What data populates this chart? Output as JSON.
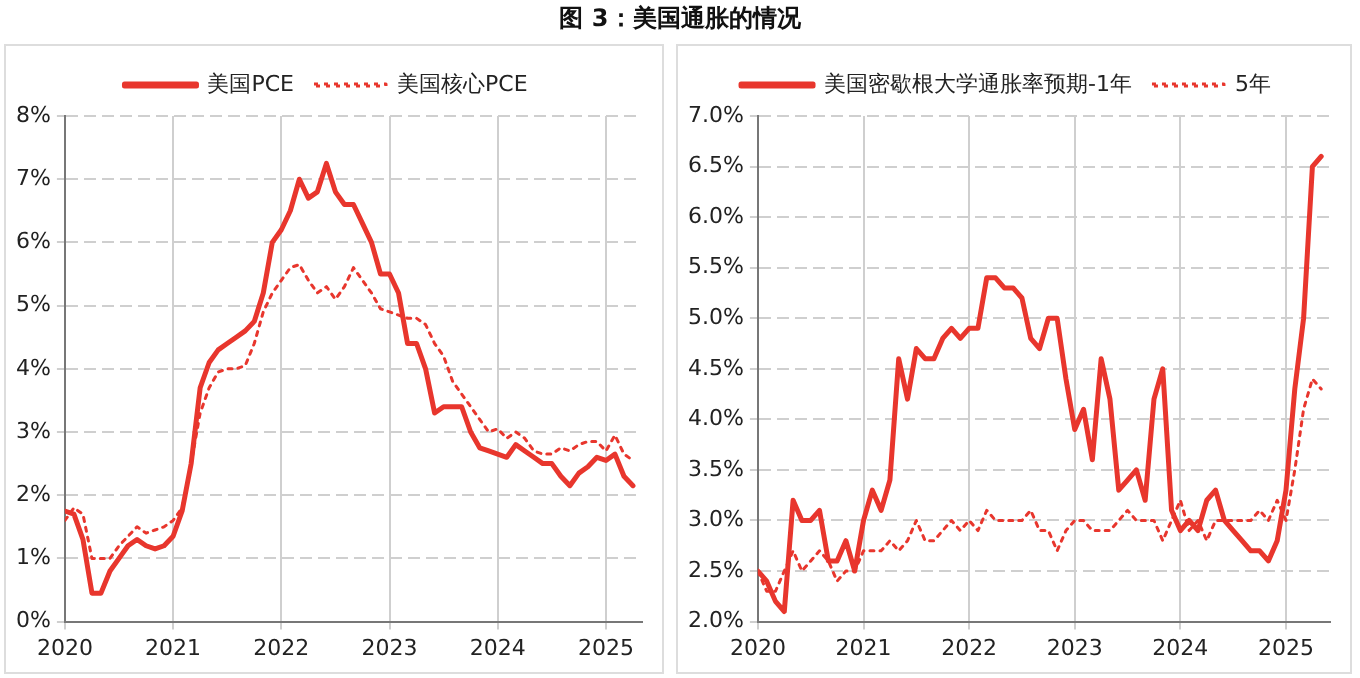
{
  "chart_data": [
    {
      "type": "line",
      "title": "图 3：美国通胀的情况",
      "x": [
        "2020-01",
        "2020-02",
        "2020-03",
        "2020-04",
        "2020-05",
        "2020-06",
        "2020-07",
        "2020-08",
        "2020-09",
        "2020-10",
        "2020-11",
        "2020-12",
        "2021-01",
        "2021-02",
        "2021-03",
        "2021-04",
        "2021-05",
        "2021-06",
        "2021-07",
        "2021-08",
        "2021-09",
        "2021-10",
        "2021-11",
        "2021-12",
        "2022-01",
        "2022-02",
        "2022-03",
        "2022-04",
        "2022-05",
        "2022-06",
        "2022-07",
        "2022-08",
        "2022-09",
        "2022-10",
        "2022-11",
        "2022-12",
        "2023-01",
        "2023-02",
        "2023-03",
        "2023-04",
        "2023-05",
        "2023-06",
        "2023-07",
        "2023-08",
        "2023-09",
        "2023-10",
        "2023-11",
        "2023-12",
        "2024-01",
        "2024-02",
        "2024-03",
        "2024-04",
        "2024-05",
        "2024-06",
        "2024-07",
        "2024-08",
        "2024-09",
        "2024-10",
        "2024-11",
        "2024-12",
        "2025-01",
        "2025-02",
        "2025-03",
        "2025-04"
      ],
      "series": [
        {
          "name": "美国PCE",
          "color": "#e8362d",
          "line_style": "solid",
          "values": [
            1.75,
            1.7,
            1.3,
            0.45,
            0.45,
            0.8,
            1.0,
            1.2,
            1.3,
            1.2,
            1.15,
            1.2,
            1.35,
            1.75,
            2.5,
            3.7,
            4.1,
            4.3,
            4.4,
            4.5,
            4.6,
            4.75,
            5.2,
            6.0,
            6.2,
            6.5,
            7.0,
            6.7,
            6.8,
            7.25,
            6.8,
            6.6,
            6.6,
            6.3,
            6.0,
            5.5,
            5.5,
            5.2,
            4.4,
            4.4,
            4.0,
            3.3,
            3.4,
            3.4,
            3.4,
            3.0,
            2.75,
            2.7,
            2.65,
            2.6,
            2.8,
            2.7,
            2.6,
            2.5,
            2.5,
            2.3,
            2.15,
            2.35,
            2.45,
            2.6,
            2.55,
            2.65,
            2.3,
            2.15
          ]
        },
        {
          "name": "美国核心PCE",
          "color": "#e8362d",
          "line_style": "dotted",
          "values": [
            1.6,
            1.8,
            1.7,
            1.0,
            1.0,
            1.0,
            1.2,
            1.35,
            1.5,
            1.4,
            1.45,
            1.5,
            1.6,
            1.8,
            2.5,
            3.3,
            3.7,
            3.95,
            4.0,
            4.0,
            4.05,
            4.4,
            4.9,
            5.2,
            5.4,
            5.6,
            5.65,
            5.4,
            5.2,
            5.3,
            5.1,
            5.3,
            5.6,
            5.4,
            5.2,
            4.95,
            4.9,
            4.85,
            4.8,
            4.8,
            4.7,
            4.4,
            4.2,
            3.8,
            3.6,
            3.4,
            3.2,
            3.0,
            3.05,
            2.9,
            3.0,
            2.9,
            2.7,
            2.65,
            2.65,
            2.75,
            2.7,
            2.8,
            2.85,
            2.85,
            2.7,
            2.95,
            2.65,
            2.55
          ]
        }
      ],
      "xlim": [
        "2020-01",
        "2025-05"
      ],
      "xticks": [
        "2020",
        "2021",
        "2022",
        "2023",
        "2024",
        "2025"
      ],
      "ylim": [
        0,
        8
      ],
      "yticks": [
        {
          "value": 0,
          "label": "0%"
        },
        {
          "value": 1,
          "label": "1%"
        },
        {
          "value": 2,
          "label": "2%"
        },
        {
          "value": 3,
          "label": "3%"
        },
        {
          "value": 4,
          "label": "4%"
        },
        {
          "value": 5,
          "label": "5%"
        },
        {
          "value": 6,
          "label": "6%"
        },
        {
          "value": 7,
          "label": "7%"
        },
        {
          "value": 8,
          "label": "8%"
        }
      ],
      "grid": true,
      "legend": "top",
      "marker": "none"
    },
    {
      "type": "line",
      "x": [
        "2020-01",
        "2020-02",
        "2020-03",
        "2020-04",
        "2020-05",
        "2020-06",
        "2020-07",
        "2020-08",
        "2020-09",
        "2020-10",
        "2020-11",
        "2020-12",
        "2021-01",
        "2021-02",
        "2021-03",
        "2021-04",
        "2021-05",
        "2021-06",
        "2021-07",
        "2021-08",
        "2021-09",
        "2021-10",
        "2021-11",
        "2021-12",
        "2022-01",
        "2022-02",
        "2022-03",
        "2022-04",
        "2022-05",
        "2022-06",
        "2022-07",
        "2022-08",
        "2022-09",
        "2022-10",
        "2022-11",
        "2022-12",
        "2023-01",
        "2023-02",
        "2023-03",
        "2023-04",
        "2023-05",
        "2023-06",
        "2023-07",
        "2023-08",
        "2023-09",
        "2023-10",
        "2023-11",
        "2023-12",
        "2024-01",
        "2024-02",
        "2024-03",
        "2024-04",
        "2024-05",
        "2024-06",
        "2024-07",
        "2024-08",
        "2024-09",
        "2024-10",
        "2024-11",
        "2024-12",
        "2025-01",
        "2025-02",
        "2025-03",
        "2025-04",
        "2025-05"
      ],
      "series": [
        {
          "name": "美国密歇根大学通胀率预期-1年",
          "color": "#e8362d",
          "line_style": "solid",
          "values": [
            2.5,
            2.4,
            2.2,
            2.1,
            3.2,
            3.0,
            3.0,
            3.1,
            2.6,
            2.6,
            2.8,
            2.5,
            3.0,
            3.3,
            3.1,
            3.4,
            4.6,
            4.2,
            4.7,
            4.6,
            4.6,
            4.8,
            4.9,
            4.8,
            4.9,
            4.9,
            5.4,
            5.4,
            5.3,
            5.3,
            5.2,
            4.8,
            4.7,
            5.0,
            5.0,
            4.4,
            3.9,
            4.1,
            3.6,
            4.6,
            4.2,
            3.3,
            3.4,
            3.5,
            3.2,
            4.2,
            4.5,
            3.1,
            2.9,
            3.0,
            2.9,
            3.2,
            3.3,
            3.0,
            2.9,
            2.8,
            2.7,
            2.7,
            2.6,
            2.8,
            3.3,
            4.3,
            5.0,
            6.5,
            6.6
          ]
        },
        {
          "name": "5年",
          "color": "#e8362d",
          "line_style": "dotted",
          "values": [
            2.5,
            2.3,
            2.3,
            2.5,
            2.7,
            2.5,
            2.6,
            2.7,
            2.6,
            2.4,
            2.5,
            2.5,
            2.7,
            2.7,
            2.7,
            2.8,
            2.7,
            2.8,
            3.0,
            2.8,
            2.8,
            2.9,
            3.0,
            2.9,
            3.0,
            2.9,
            3.1,
            3.0,
            3.0,
            3.0,
            3.0,
            3.1,
            2.9,
            2.9,
            2.7,
            2.9,
            3.0,
            3.0,
            2.9,
            2.9,
            2.9,
            3.0,
            3.1,
            3.0,
            3.0,
            3.0,
            2.8,
            3.0,
            3.2,
            2.9,
            3.0,
            2.8,
            3.0,
            3.0,
            3.0,
            3.0,
            3.0,
            3.1,
            3.0,
            3.2,
            3.0,
            3.5,
            4.1,
            4.4,
            4.3
          ]
        }
      ],
      "xlim": [
        "2020-01",
        "2025-06"
      ],
      "xticks": [
        "2020",
        "2021",
        "2022",
        "2023",
        "2024",
        "2025"
      ],
      "ylim": [
        2,
        7
      ],
      "yticks": [
        {
          "value": 2,
          "label": "2.0%"
        },
        {
          "value": 2.5,
          "label": "2.5%"
        },
        {
          "value": 3,
          "label": "3.0%"
        },
        {
          "value": 3.5,
          "label": "3.5%"
        },
        {
          "value": 4,
          "label": "4.0%"
        },
        {
          "value": 4.5,
          "label": "4.5%"
        },
        {
          "value": 5,
          "label": "5.0%"
        },
        {
          "value": 5.5,
          "label": "5.5%"
        },
        {
          "value": 6,
          "label": "6.0%"
        },
        {
          "value": 6.5,
          "label": "6.5%"
        },
        {
          "value": 7,
          "label": "7.0%"
        }
      ],
      "grid": true,
      "legend": "top",
      "marker": "none"
    }
  ]
}
